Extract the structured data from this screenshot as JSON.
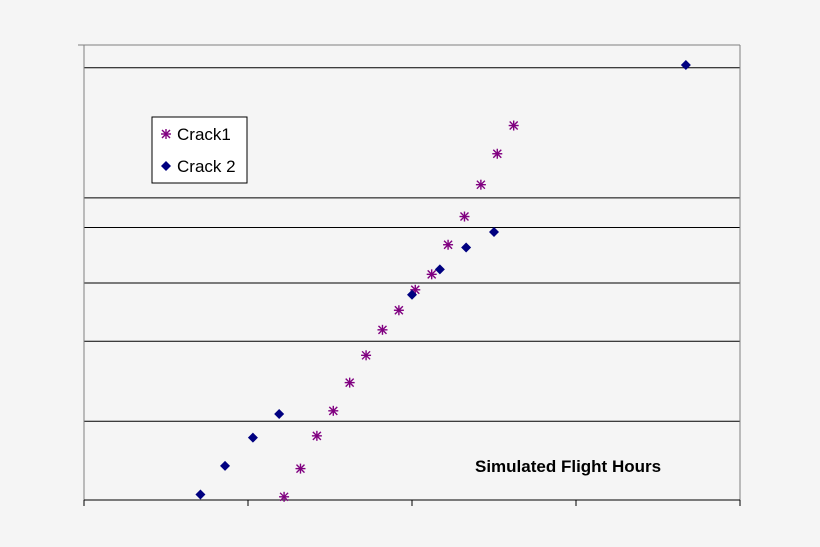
{
  "chart_data": {
    "type": "scatter",
    "title": "",
    "xlabel": "",
    "ylabel": "",
    "annotation": "Simulated Flight Hours",
    "xlim": [
      0,
      4
    ],
    "ylim": [
      0,
      1
    ],
    "x_ticks": [
      0,
      1,
      2,
      3,
      4
    ],
    "y_grid": [
      0,
      0.173,
      0.349,
      0.477,
      0.599,
      0.664,
      0.95
    ],
    "grid": true,
    "legend": {
      "position": "top-left"
    },
    "colors": {
      "Crack1": "#800080",
      "Crack 2": "#000080",
      "grid": "#000000",
      "background": "#f5f5f5"
    },
    "series": [
      {
        "name": "Crack1",
        "marker": "asterisk",
        "points": [
          [
            1.22,
            0.007
          ],
          [
            1.32,
            0.069
          ],
          [
            1.42,
            0.141
          ],
          [
            1.52,
            0.196
          ],
          [
            1.62,
            0.258
          ],
          [
            1.72,
            0.318
          ],
          [
            1.82,
            0.374
          ],
          [
            1.92,
            0.417
          ],
          [
            2.02,
            0.462
          ],
          [
            2.12,
            0.496
          ],
          [
            2.22,
            0.561
          ],
          [
            2.32,
            0.623
          ],
          [
            2.42,
            0.693
          ],
          [
            2.52,
            0.761
          ],
          [
            2.62,
            0.823
          ]
        ]
      },
      {
        "name": "Crack 2",
        "marker": "diamond",
        "points": [
          [
            0.71,
            0.012
          ],
          [
            0.86,
            0.075
          ],
          [
            1.03,
            0.137
          ],
          [
            1.19,
            0.189
          ],
          [
            2.0,
            0.451
          ],
          [
            2.17,
            0.507
          ],
          [
            2.33,
            0.555
          ],
          [
            2.5,
            0.589
          ],
          [
            3.67,
            0.956
          ]
        ]
      }
    ]
  }
}
